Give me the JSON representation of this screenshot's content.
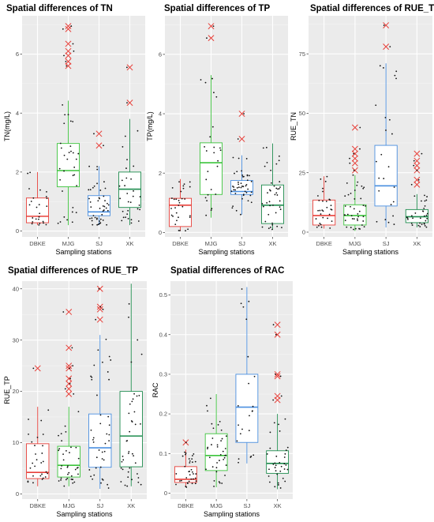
{
  "chart_data": [
    {
      "type": "boxplot",
      "title": "Spatial differences of TN",
      "xlabel": "Sampling stations",
      "ylabel": "TN(mg/L)",
      "ylim": [
        -0.2,
        7.3
      ],
      "yticks": [
        0,
        2,
        4,
        6
      ],
      "categories": [
        "DBKE",
        "MJG",
        "SJ",
        "XK"
      ],
      "colors": [
        "#e8403a",
        "#3cc43c",
        "#4a8fe0",
        "#1e8c4e"
      ],
      "boxes": [
        {
          "min": 0.2,
          "q1": 0.28,
          "median": 0.5,
          "q3": 1.12,
          "max": 2.0,
          "outliers": []
        },
        {
          "min": 0.2,
          "q1": 1.5,
          "median": 2.05,
          "q3": 2.97,
          "max": 4.42,
          "outliers": [
            5.6,
            5.75,
            5.95,
            6.1,
            6.35,
            6.85,
            6.95
          ]
        },
        {
          "min": 0.2,
          "q1": 0.52,
          "median": 0.65,
          "q3": 1.2,
          "max": 2.2,
          "outliers": [
            2.9,
            3.3
          ]
        },
        {
          "min": 0.2,
          "q1": 0.8,
          "median": 1.42,
          "q3": 2.0,
          "max": 3.8,
          "outliers": [
            4.35,
            5.55
          ]
        }
      ]
    },
    {
      "type": "boxplot",
      "title": "Spatial differences of TP",
      "xlabel": "Sampling stations",
      "ylabel": "TP(mg/L)",
      "ylim": [
        -0.15,
        7.3
      ],
      "yticks": [
        0,
        2,
        4,
        6
      ],
      "categories": [
        "DBKE",
        "MJG",
        "SJ",
        "XK"
      ],
      "colors": [
        "#e8403a",
        "#3cc43c",
        "#4a8fe0",
        "#1e8c4e"
      ],
      "boxes": [
        {
          "min": 0.05,
          "q1": 0.2,
          "median": 0.92,
          "q3": 1.15,
          "max": 1.8,
          "outliers": []
        },
        {
          "min": 0.5,
          "q1": 1.28,
          "median": 2.35,
          "q3": 3.02,
          "max": 5.3,
          "outliers": [
            6.55,
            6.95
          ]
        },
        {
          "min": 0.6,
          "q1": 1.28,
          "median": 1.38,
          "q3": 1.75,
          "max": 2.6,
          "outliers": [
            3.15,
            4.0
          ]
        },
        {
          "min": 0.1,
          "q1": 0.3,
          "median": 0.92,
          "q3": 1.6,
          "max": 3.0,
          "outliers": []
        }
      ]
    },
    {
      "type": "boxplot",
      "title": "Spatial differences of RUE_TN",
      "xlabel": "Sampling stations",
      "ylabel": "RUE_TN",
      "ylim": [
        -2,
        91
      ],
      "yticks": [
        0,
        25,
        50,
        75
      ],
      "categories": [
        "DBKE",
        "MJG",
        "SJ",
        "XK"
      ],
      "colors": [
        "#e8403a",
        "#3cc43c",
        "#4a8fe0",
        "#1e8c4e"
      ],
      "boxes": [
        {
          "min": 1.5,
          "q1": 3.0,
          "median": 7.0,
          "q3": 13.5,
          "max": 23.5,
          "outliers": []
        },
        {
          "min": 0.5,
          "q1": 3.0,
          "median": 7.0,
          "q3": 11.5,
          "max": 24.0,
          "outliers": [
            26,
            29,
            31,
            33,
            35,
            44
          ]
        },
        {
          "min": 2.0,
          "q1": 11.0,
          "median": 19.5,
          "q3": 36.5,
          "max": 71.0,
          "outliers": [
            78,
            87
          ]
        },
        {
          "min": 2.0,
          "q1": 4.0,
          "median": 6.5,
          "q3": 9.5,
          "max": 16.0,
          "outliers": [
            20,
            22,
            26,
            28,
            30,
            33
          ]
        }
      ]
    },
    {
      "type": "boxplot",
      "title": "Spatial differences of RUE_TP",
      "xlabel": "Sampling stations",
      "ylabel": "RUE_TP",
      "ylim": [
        -1,
        41.5
      ],
      "yticks": [
        0,
        10,
        20,
        30,
        40
      ],
      "categories": [
        "DBKE",
        "MJG",
        "SJ",
        "XK"
      ],
      "colors": [
        "#e8403a",
        "#3cc43c",
        "#4a8fe0",
        "#1e8c4e"
      ],
      "boxes": [
        {
          "min": 1.5,
          "q1": 3.0,
          "median": 4.2,
          "q3": 9.8,
          "max": 17.0,
          "outliers": [
            24.5
          ]
        },
        {
          "min": 1.5,
          "q1": 3.3,
          "median": 5.6,
          "q3": 9.3,
          "max": 17.0,
          "outliers": [
            19.5,
            20.5,
            21.5,
            22.5,
            24.5,
            25.0,
            28.5,
            35.5
          ]
        },
        {
          "min": 1.0,
          "q1": 5.2,
          "median": 9.0,
          "q3": 15.6,
          "max": 31.0,
          "outliers": [
            34.0,
            36.0,
            36.5,
            40.0
          ]
        },
        {
          "min": 1.5,
          "q1": 5.3,
          "median": 11.3,
          "q3": 20.0,
          "max": 41.0,
          "outliers": []
        }
      ]
    },
    {
      "type": "boxplot",
      "title": "Spatial differences of RAC",
      "xlabel": "Sampling stations",
      "ylabel": "RAC",
      "ylim": [
        -0.015,
        0.535
      ],
      "yticks": [
        0.0,
        0.1,
        0.2,
        0.3,
        0.4,
        0.5
      ],
      "categories": [
        "DBKE",
        "MJG",
        "SJ",
        "XK"
      ],
      "colors": [
        "#e8403a",
        "#3cc43c",
        "#4a8fe0",
        "#1e8c4e"
      ],
      "boxes": [
        {
          "min": 0.015,
          "q1": 0.027,
          "median": 0.035,
          "q3": 0.067,
          "max": 0.11,
          "outliers": [
            0.128
          ]
        },
        {
          "min": 0.015,
          "q1": 0.057,
          "median": 0.095,
          "q3": 0.15,
          "max": 0.25,
          "outliers": []
        },
        {
          "min": 0.075,
          "q1": 0.128,
          "median": 0.217,
          "q3": 0.3,
          "max": 0.52,
          "outliers": []
        },
        {
          "min": 0.01,
          "q1": 0.05,
          "median": 0.075,
          "q3": 0.107,
          "max": 0.2,
          "outliers": [
            0.235,
            0.245,
            0.295,
            0.3,
            0.4,
            0.425
          ]
        }
      ]
    }
  ]
}
